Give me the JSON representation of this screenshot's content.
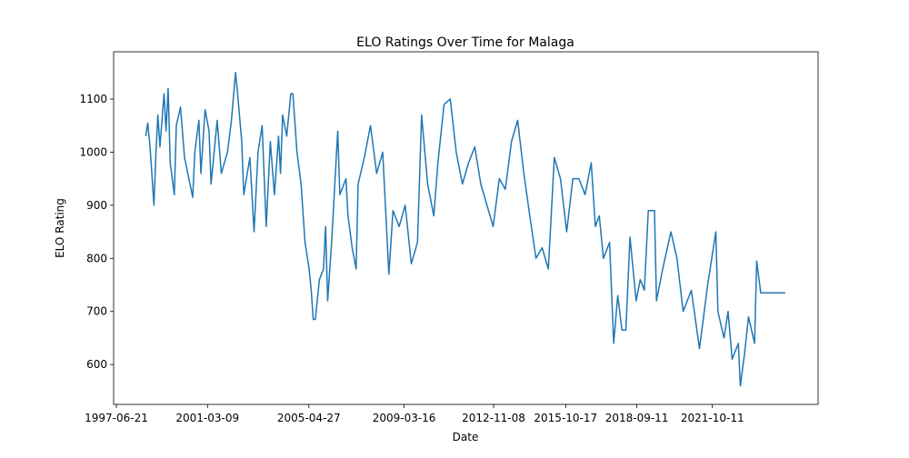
{
  "chart_data": {
    "type": "line",
    "title": "ELO Ratings Over Time for Malaga",
    "x_label": "Date",
    "y_label": "ELO Rating",
    "color": "#1f77b4",
    "x": [
      "1998-09-01",
      "1998-10-01",
      "1998-11-01",
      "1998-12-01",
      "1999-01-01",
      "1999-02-01",
      "1999-03-01",
      "1999-04-01",
      "1999-06-01",
      "1999-07-01",
      "1999-08-01",
      "1999-09-01",
      "1999-11-01",
      "1999-12-01",
      "2000-02-01",
      "2000-04-01",
      "2000-08-01",
      "2000-09-01",
      "2000-11-01",
      "2000-12-01",
      "2001-02-01",
      "2001-04-01",
      "2001-05-01",
      "2001-08-01",
      "2001-10-01",
      "2002-01-01",
      "2002-03-01",
      "2002-05-01",
      "2002-06-01",
      "2002-08-01",
      "2002-09-01",
      "2002-12-01",
      "2003-02-01",
      "2003-04-01",
      "2003-06-01",
      "2003-08-01",
      "2003-10-01",
      "2003-12-01",
      "2004-02-01",
      "2004-03-01",
      "2004-04-01",
      "2004-06-01",
      "2004-08-01",
      "2004-09-01",
      "2004-11-01",
      "2005-01-01",
      "2005-03-01",
      "2005-05-01",
      "2005-06-01",
      "2005-07-01",
      "2005-08-01",
      "2005-10-01",
      "2005-12-01",
      "2006-01-01",
      "2006-02-01",
      "2006-04-01",
      "2006-05-01",
      "2006-07-01",
      "2006-08-01",
      "2006-11-01",
      "2006-12-01",
      "2007-02-01",
      "2007-04-01",
      "2007-05-01",
      "2007-08-01",
      "2007-11-01",
      "2008-02-01",
      "2008-05-01",
      "2008-08-01",
      "2008-10-01",
      "2009-01-01",
      "2009-04-01",
      "2009-07-01",
      "2009-10-01",
      "2009-12-01",
      "2010-03-01",
      "2010-06-01",
      "2010-08-01",
      "2010-11-01",
      "2011-02-01",
      "2011-05-01",
      "2011-08-01",
      "2011-11-01",
      "2012-02-01",
      "2012-05-01",
      "2012-08-01",
      "2012-11-01",
      "2013-02-01",
      "2013-05-01",
      "2013-08-01",
      "2013-11-01",
      "2014-02-01",
      "2014-05-01",
      "2014-08-01",
      "2014-11-01",
      "2015-02-01",
      "2015-05-01",
      "2015-08-01",
      "2015-11-01",
      "2016-02-01",
      "2016-05-01",
      "2016-08-01",
      "2016-11-01",
      "2017-01-01",
      "2017-03-01",
      "2017-05-01",
      "2017-08-01",
      "2017-10-01",
      "2017-12-01",
      "2018-02-01",
      "2018-04-01",
      "2018-06-01",
      "2018-09-01",
      "2018-11-01",
      "2019-01-01",
      "2019-03-01",
      "2019-06-01",
      "2019-07-01",
      "2019-10-01",
      "2020-02-01",
      "2020-05-01",
      "2020-08-01",
      "2020-12-01",
      "2021-04-01",
      "2021-08-01",
      "2021-12-01",
      "2022-01-01",
      "2022-04-01",
      "2022-06-01",
      "2022-08-01",
      "2022-11-01",
      "2022-12-01",
      "2023-02-01",
      "2023-04-01",
      "2023-07-01",
      "2023-08-01",
      "2023-10-01",
      "2024-10-01"
    ],
    "values": [
      1030,
      1055,
      1015,
      960,
      900,
      1000,
      1070,
      1010,
      1110,
      1040,
      1120,
      980,
      920,
      1050,
      1085,
      990,
      915,
      1000,
      1060,
      960,
      1080,
      1040,
      940,
      1060,
      960,
      1000,
      1060,
      1150,
      1110,
      1020,
      920,
      990,
      850,
      1000,
      1050,
      860,
      1020,
      920,
      1030,
      960,
      1070,
      1030,
      1110,
      1110,
      1000,
      940,
      830,
      780,
      740,
      685,
      685,
      760,
      780,
      860,
      720,
      830,
      900,
      1040,
      920,
      950,
      880,
      820,
      780,
      940,
      990,
      1050,
      960,
      1000,
      770,
      890,
      860,
      900,
      790,
      830,
      1070,
      940,
      880,
      980,
      1090,
      1100,
      1000,
      940,
      980,
      1010,
      940,
      900,
      860,
      950,
      930,
      1020,
      1060,
      960,
      880,
      800,
      820,
      780,
      990,
      950,
      850,
      950,
      950,
      920,
      980,
      860,
      880,
      800,
      830,
      640,
      730,
      665,
      665,
      840,
      720,
      760,
      740,
      890,
      890,
      720,
      780,
      850,
      800,
      700,
      740,
      630,
      750,
      850,
      700,
      650,
      700,
      610,
      640,
      560,
      620,
      690,
      640,
      795,
      735,
      735
    ],
    "xlim": [
      "1997-05-11",
      "2026-02-01"
    ],
    "xticks": [
      "1997-06-21",
      "2001-03-09",
      "2005-04-27",
      "2009-03-16",
      "2012-11-08",
      "2015-10-17",
      "2018-09-11",
      "2021-10-11"
    ],
    "ylim": [
      525,
      1189
    ],
    "yticks": [
      600,
      700,
      800,
      900,
      1000,
      1100
    ]
  }
}
